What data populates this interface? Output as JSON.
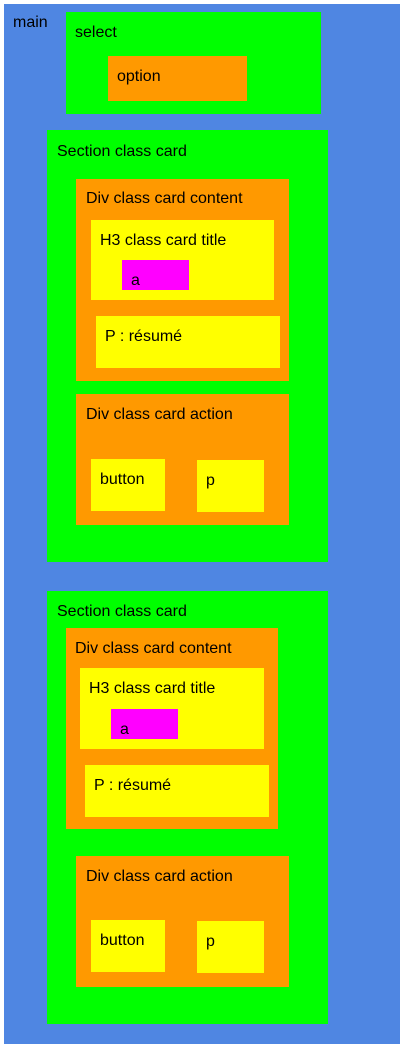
{
  "main": {
    "label": "main",
    "select": {
      "label": "select",
      "option": {
        "label": "option"
      }
    },
    "cards": [
      {
        "label": "Section class card",
        "content": {
          "label": "Div class card content",
          "title": {
            "label": "H3 class card title",
            "link": "a"
          },
          "summary": "P : résumé"
        },
        "action": {
          "label": "Div class card action",
          "button": "button",
          "p": "p"
        }
      },
      {
        "label": "Section class card",
        "content": {
          "label": "Div class card content",
          "title": {
            "label": "H3 class card title",
            "link": "a"
          },
          "summary": "P : résumé"
        },
        "action": {
          "label": "Div class card action",
          "button": "button",
          "p": "p"
        }
      }
    ]
  },
  "colors": {
    "main": "#4f86e2",
    "section": "#00ff00",
    "div": "#ff9900",
    "leaf": "#ffff00",
    "link": "#ff00ff"
  }
}
